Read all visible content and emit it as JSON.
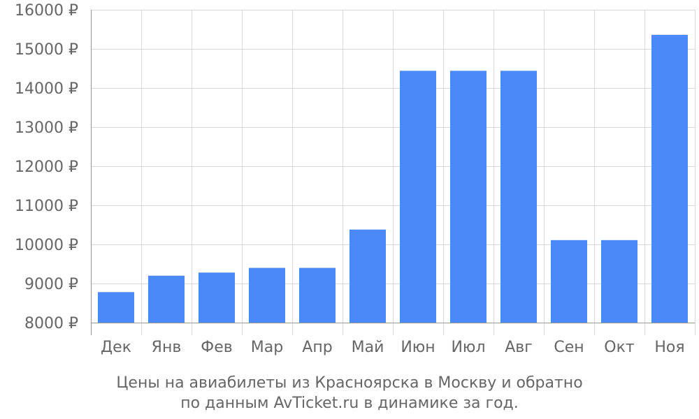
{
  "chart_data": {
    "type": "bar",
    "categories": [
      "Дек",
      "Янв",
      "Фев",
      "Мар",
      "Апр",
      "Май",
      "Июн",
      "Июл",
      "Авг",
      "Сен",
      "Окт",
      "Ноя"
    ],
    "values": [
      8780,
      9200,
      9280,
      9400,
      9400,
      10380,
      14440,
      14440,
      14440,
      10110,
      10110,
      15360
    ],
    "ylim": [
      8000,
      16000
    ],
    "yticks": [
      8000,
      9000,
      10000,
      11000,
      12000,
      13000,
      14000,
      15000,
      16000
    ],
    "ytick_labels": [
      "8000 ₽",
      "9000 ₽",
      "10000 ₽",
      "11000 ₽",
      "12000 ₽",
      "13000 ₽",
      "14000 ₽",
      "15000 ₽",
      "16000 ₽"
    ],
    "bar_color": "#4b89f8",
    "grid": true
  },
  "caption": {
    "line1": "Цены на авиабилеты из Красноярска в Москву и обратно",
    "line2": "по данным AvTicket.ru в динамике за год."
  }
}
